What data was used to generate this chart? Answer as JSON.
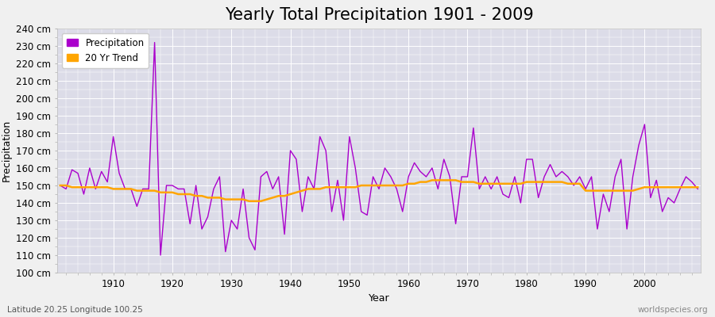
{
  "title": "Yearly Total Precipitation 1901 - 2009",
  "xlabel": "Year",
  "ylabel": "Precipitation",
  "subtitle": "Latitude 20.25 Longitude 100.25",
  "watermark": "worldspecies.org",
  "ylim": [
    100,
    240
  ],
  "ytick_step": 10,
  "years": [
    1901,
    1902,
    1903,
    1904,
    1905,
    1906,
    1907,
    1908,
    1909,
    1910,
    1911,
    1912,
    1913,
    1914,
    1915,
    1916,
    1917,
    1918,
    1919,
    1920,
    1921,
    1922,
    1923,
    1924,
    1925,
    1926,
    1927,
    1928,
    1929,
    1930,
    1931,
    1932,
    1933,
    1934,
    1935,
    1936,
    1937,
    1938,
    1939,
    1940,
    1941,
    1942,
    1943,
    1944,
    1945,
    1946,
    1947,
    1948,
    1949,
    1950,
    1951,
    1952,
    1953,
    1954,
    1955,
    1956,
    1957,
    1958,
    1959,
    1960,
    1961,
    1962,
    1963,
    1964,
    1965,
    1966,
    1967,
    1968,
    1969,
    1970,
    1971,
    1972,
    1973,
    1974,
    1975,
    1976,
    1977,
    1978,
    1979,
    1980,
    1981,
    1982,
    1983,
    1984,
    1985,
    1986,
    1987,
    1988,
    1989,
    1990,
    1991,
    1992,
    1993,
    1994,
    1995,
    1996,
    1997,
    1998,
    1999,
    2000,
    2001,
    2002,
    2003,
    2004,
    2005,
    2006,
    2007,
    2008,
    2009
  ],
  "precipitation": [
    150,
    148,
    159,
    157,
    145,
    160,
    148,
    158,
    152,
    178,
    157,
    148,
    148,
    138,
    148,
    148,
    232,
    110,
    150,
    150,
    148,
    148,
    128,
    150,
    125,
    132,
    148,
    155,
    112,
    130,
    125,
    148,
    120,
    113,
    155,
    158,
    148,
    155,
    122,
    170,
    165,
    135,
    155,
    148,
    178,
    170,
    135,
    153,
    130,
    178,
    160,
    135,
    133,
    155,
    148,
    160,
    155,
    148,
    135,
    155,
    163,
    158,
    155,
    160,
    148,
    165,
    155,
    128,
    155,
    155,
    183,
    148,
    155,
    148,
    155,
    145,
    143,
    155,
    140,
    165,
    165,
    143,
    155,
    162,
    155,
    158,
    155,
    150,
    155,
    148,
    155,
    125,
    145,
    135,
    155,
    165,
    125,
    155,
    173,
    185,
    143,
    153,
    135,
    143,
    140,
    148,
    155,
    152,
    148
  ],
  "trend": [
    150,
    150,
    149,
    149,
    149,
    149,
    149,
    149,
    149,
    148,
    148,
    148,
    148,
    147,
    147,
    147,
    147,
    146,
    146,
    146,
    145,
    145,
    145,
    144,
    144,
    143,
    143,
    143,
    142,
    142,
    142,
    142,
    141,
    141,
    141,
    142,
    143,
    144,
    144,
    145,
    146,
    147,
    148,
    148,
    148,
    149,
    149,
    149,
    149,
    149,
    149,
    150,
    150,
    150,
    150,
    150,
    150,
    150,
    150,
    151,
    151,
    152,
    152,
    153,
    153,
    153,
    153,
    153,
    152,
    152,
    152,
    151,
    151,
    151,
    151,
    151,
    151,
    151,
    151,
    152,
    152,
    152,
    152,
    152,
    152,
    152,
    151,
    151,
    151,
    147,
    147,
    147,
    147,
    147,
    147,
    147,
    147,
    147,
    148,
    149,
    149,
    149,
    149,
    149,
    149,
    149,
    149,
    149,
    149
  ],
  "precip_color": "#AA00CC",
  "trend_color": "#FFA500",
  "background_color": "#F0F0F0",
  "plot_bg_color": "#DCDCE8",
  "grid_color": "#FFFFFF",
  "title_fontsize": 15,
  "label_fontsize": 9,
  "tick_fontsize": 8.5,
  "legend_fontsize": 8.5,
  "fig_width": 9.0,
  "fig_height": 4.0,
  "dpi": 100
}
